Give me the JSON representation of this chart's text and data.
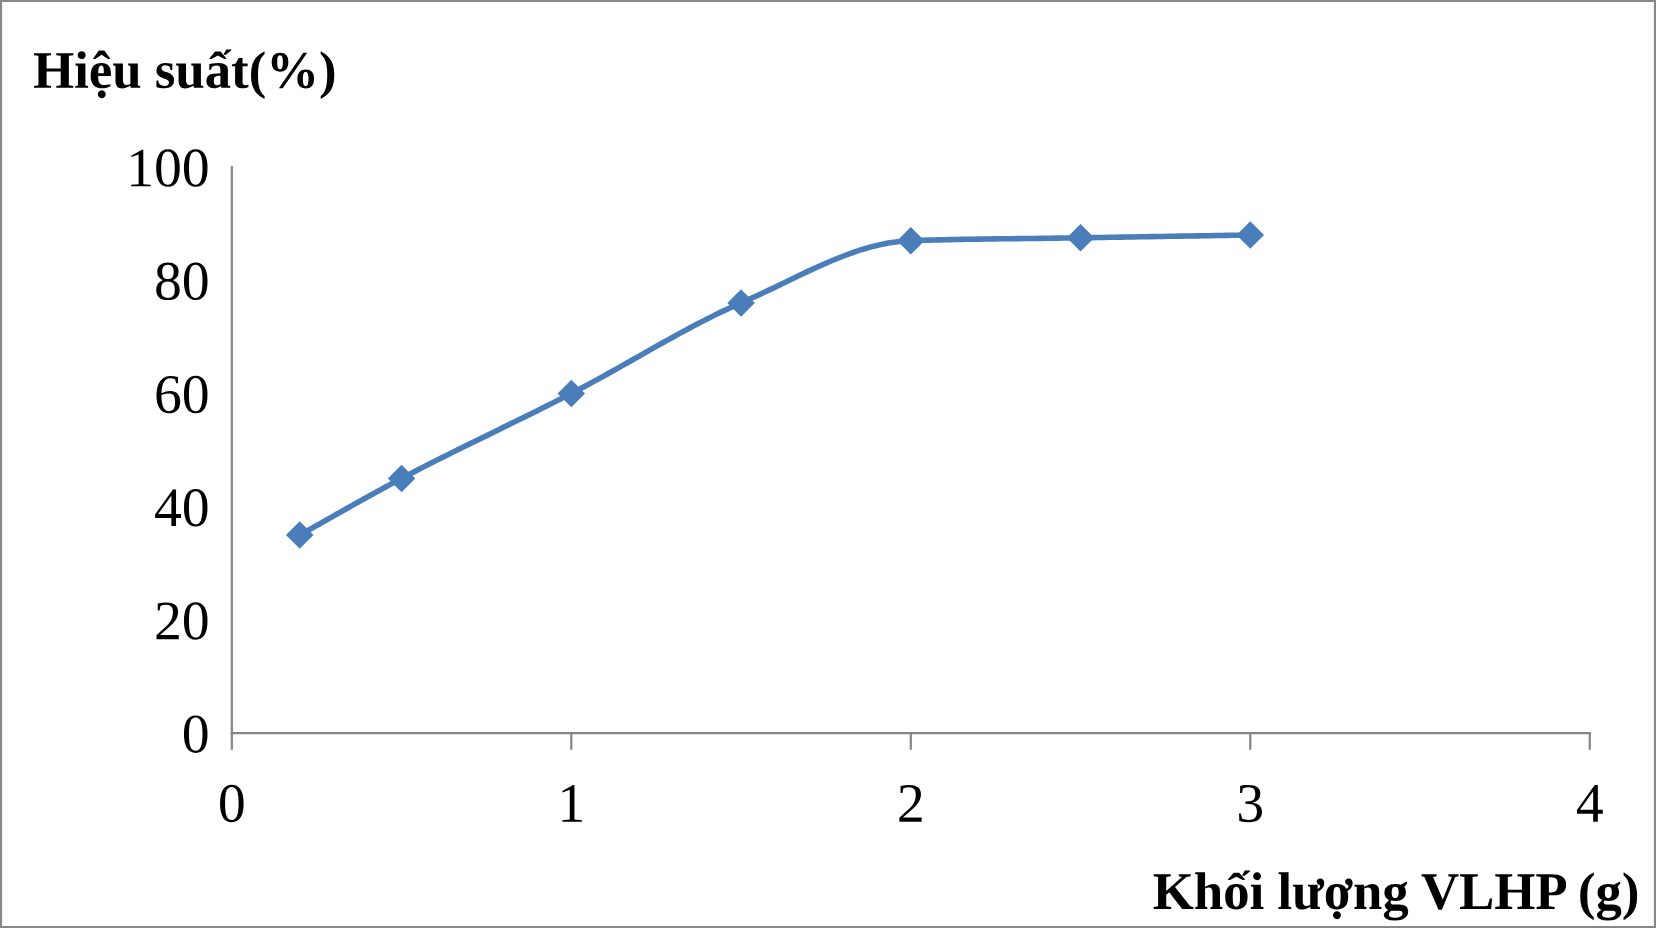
{
  "chart_data": {
    "type": "line",
    "ylabel": "Hiệu suất(%)",
    "xlabel": "Khối lượng VLHP (g)",
    "x": [
      0.2,
      0.5,
      1,
      1.5,
      2,
      2.5,
      3
    ],
    "series": [
      {
        "color": "#4a7ebb",
        "values": [
          35,
          45,
          60,
          76,
          87,
          87.5,
          88
        ]
      }
    ],
    "xlim": [
      0,
      4
    ],
    "xticks": [
      0,
      1,
      2,
      3,
      4
    ],
    "ylim": [
      0,
      100
    ],
    "yticks": [
      0,
      20,
      40,
      60,
      80,
      100
    ],
    "grid": false,
    "marker": "diamond",
    "line_style": "solid"
  }
}
